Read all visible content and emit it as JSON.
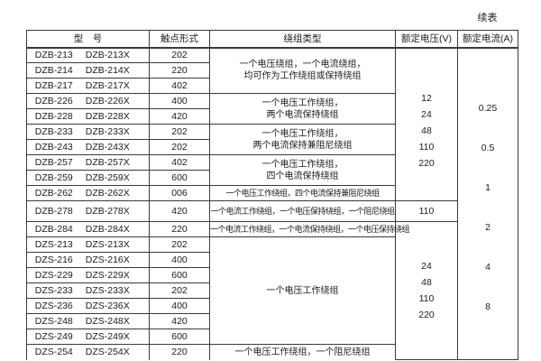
{
  "page": {
    "continued_label": "续表"
  },
  "table": {
    "headers": [
      "型　号",
      "触点形式",
      "绕组类型",
      "额定电压(V)",
      "额定电流(A)"
    ],
    "rows": [
      {
        "model": "DZB-213",
        "model_x": "DZB-213X",
        "contact": "202"
      },
      {
        "model": "DZB-214",
        "model_x": "DZB-214X",
        "contact": "220"
      },
      {
        "model": "DZB-217",
        "model_x": "DZB-217X",
        "contact": "402"
      },
      {
        "model": "DZB-226",
        "model_x": "DZB-226X",
        "contact": "400"
      },
      {
        "model": "DZB-228",
        "model_x": "DZB-228X",
        "contact": "420"
      },
      {
        "model": "DZB-233",
        "model_x": "DZB-233X",
        "contact": "202"
      },
      {
        "model": "DZB-243",
        "model_x": "DZB-243X",
        "contact": "202"
      },
      {
        "model": "DZB-257",
        "model_x": "DZB-257X",
        "contact": "402"
      },
      {
        "model": "DZB-259",
        "model_x": "DZB-259X",
        "contact": "600"
      },
      {
        "model": "DZB-262",
        "model_x": "DZB-262X",
        "contact": "006"
      },
      {
        "model": "DZB-278",
        "model_x": "DZB-278X",
        "contact": "420"
      },
      {
        "model": "DZB-284",
        "model_x": "DZB-284X",
        "contact": "220"
      },
      {
        "model": "DZS-213",
        "model_x": "DZS-213X",
        "contact": "202"
      },
      {
        "model": "DZS-216",
        "model_x": "DZS-216X",
        "contact": "400"
      },
      {
        "model": "DZS-229",
        "model_x": "DZS-229X",
        "contact": "600"
      },
      {
        "model": "DZS-233",
        "model_x": "DZS-233X",
        "contact": "202"
      },
      {
        "model": "DZS-236",
        "model_x": "DZS-236X",
        "contact": "400"
      },
      {
        "model": "DZS-248",
        "model_x": "DZS-248X",
        "contact": "420"
      },
      {
        "model": "DZS-249",
        "model_x": "DZS-249X",
        "contact": "600"
      },
      {
        "model": "DZS-254",
        "model_x": "DZS-254X",
        "contact": "220"
      }
    ],
    "winding_groups": [
      {
        "start": 0,
        "span": 3,
        "lines": [
          "一个电压绕组，一个电流绕组，",
          "均可作为工作绕组或保持绕组"
        ]
      },
      {
        "start": 3,
        "span": 2,
        "lines": [
          "一个电压工作绕组，",
          "两个电流保持绕组"
        ]
      },
      {
        "start": 5,
        "span": 2,
        "lines": [
          "一个电压工作绕组，",
          "两个电流保持兼阻尼绕组"
        ]
      },
      {
        "start": 7,
        "span": 2,
        "lines": [
          "一个电压工作绕组，",
          "四个电流保持绕组"
        ]
      },
      {
        "start": 9,
        "span": 1,
        "lines": [
          "一个电压工作绕组，四个电流保持兼阻尼绕组"
        ]
      },
      {
        "start": 10,
        "span": 1,
        "lines": [
          "一个电流工作绕组，一个电压保持绕组，一个阻尼绕组"
        ]
      },
      {
        "start": 11,
        "span": 1,
        "lines": [
          "一个电流工作绕组，一个电流保持绕组，一个电压保持绕组"
        ]
      },
      {
        "start": 12,
        "span": 7,
        "lines": [
          "一个电压工作绕组"
        ]
      },
      {
        "start": 19,
        "span": 1,
        "lines": [
          "一个电压工作绕组，一个阻尼绕组"
        ]
      }
    ],
    "voltage_groups": [
      {
        "start": 0,
        "span": 10,
        "values": [
          "12",
          "24",
          "48",
          "110",
          "220"
        ]
      },
      {
        "start": 10,
        "span": 1,
        "values": [
          "110"
        ]
      },
      {
        "start": 11,
        "span": 9,
        "values": [
          "24",
          "48",
          "110",
          "220"
        ]
      }
    ],
    "current_groups": [
      {
        "start": 0,
        "span": 20,
        "values": [
          "0.25",
          "0.5",
          "1",
          "2",
          "4",
          "8"
        ]
      }
    ]
  }
}
